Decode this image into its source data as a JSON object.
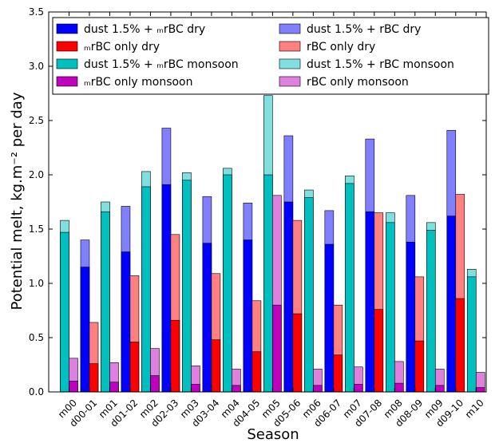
{
  "chart_data": {
    "type": "bar",
    "title": "",
    "xlabel": "Season",
    "ylabel": "Potential melt, kg.m⁻² per day",
    "ylim": [
      0,
      3.5
    ],
    "yticks": [
      "0.0",
      "0.5",
      "1.0",
      "1.5",
      "2.0",
      "2.5",
      "3.0",
      "3.5"
    ],
    "grid": false,
    "legend_placement": "top",
    "categories": [
      "m00",
      "d00-01",
      "m01",
      "d01-02",
      "m02",
      "d02-03",
      "m03",
      "d03-04",
      "m04",
      "d04-05",
      "m05",
      "d05-06",
      "m06",
      "d06-07",
      "m07",
      "d07-08",
      "m08",
      "d08-09",
      "m09",
      "d09-10",
      "m10"
    ],
    "season_kind": [
      "monsoon",
      "dry",
      "monsoon",
      "dry",
      "monsoon",
      "dry",
      "monsoon",
      "dry",
      "monsoon",
      "dry",
      "monsoon",
      "dry",
      "monsoon",
      "dry",
      "monsoon",
      "dry",
      "monsoon",
      "dry",
      "monsoon",
      "dry",
      "monsoon"
    ],
    "legend": [
      {
        "label": "dust 1.5% + ₘrBC dry",
        "color": "#0000ff"
      },
      {
        "label": "ₘrBC only dry",
        "color": "#ff0000"
      },
      {
        "label": "dust 1.5% + ₘrBC monsoon",
        "color": "#00bfbf"
      },
      {
        "label": "ₘrBC only monsoon",
        "color": "#bf00bf"
      },
      {
        "label": "dust 1.5% + rBC dry",
        "color": "#8080ff"
      },
      {
        "label": "rBC only dry",
        "color": "#ff8080"
      },
      {
        "label": "dust 1.5% + rBC  monsoon",
        "color": "#80dfdf"
      },
      {
        "label": "rBC only monsoon",
        "color": "#df80df"
      }
    ],
    "series": [
      {
        "name": "dust 1.5% + ₘrBC dry",
        "values": [
          null,
          1.15,
          null,
          1.29,
          null,
          1.91,
          null,
          1.37,
          null,
          1.4,
          null,
          1.75,
          null,
          1.36,
          null,
          1.66,
          null,
          1.38,
          null,
          1.62,
          null
        ]
      },
      {
        "name": "ₘrBC only dry",
        "values": [
          null,
          0.26,
          null,
          0.46,
          null,
          0.66,
          null,
          0.48,
          null,
          0.37,
          null,
          0.72,
          null,
          0.34,
          null,
          0.76,
          null,
          0.47,
          null,
          0.86,
          null
        ]
      },
      {
        "name": "dust 1.5% + ₘrBC monsoon",
        "values": [
          1.47,
          null,
          1.66,
          null,
          1.89,
          null,
          1.95,
          null,
          2.0,
          null,
          2.0,
          null,
          1.79,
          null,
          1.92,
          null,
          1.56,
          null,
          1.49,
          null,
          1.06
        ]
      },
      {
        "name": "ₘrBC only monsoon",
        "values": [
          0.1,
          null,
          0.09,
          null,
          0.15,
          null,
          0.07,
          null,
          0.06,
          null,
          0.8,
          null,
          0.06,
          null,
          0.07,
          null,
          0.08,
          null,
          0.06,
          null,
          0.04
        ]
      },
      {
        "name": "dust 1.5% + rBC dry",
        "values": [
          null,
          1.4,
          null,
          1.71,
          null,
          2.43,
          null,
          1.8,
          null,
          1.74,
          null,
          2.36,
          null,
          1.67,
          null,
          2.33,
          null,
          1.81,
          null,
          2.41,
          null
        ]
      },
      {
        "name": "rBC only dry",
        "values": [
          null,
          0.64,
          null,
          1.07,
          null,
          1.45,
          null,
          1.09,
          null,
          0.84,
          null,
          1.58,
          null,
          0.8,
          null,
          1.65,
          null,
          1.06,
          null,
          1.82,
          null
        ]
      },
      {
        "name": "dust 1.5% + rBC  monsoon",
        "values": [
          1.58,
          null,
          1.75,
          null,
          2.03,
          null,
          2.02,
          null,
          2.06,
          null,
          2.73,
          null,
          1.86,
          null,
          1.99,
          null,
          1.65,
          null,
          1.56,
          null,
          1.13
        ]
      },
      {
        "name": "rBC only monsoon",
        "values": [
          0.31,
          null,
          0.27,
          null,
          0.4,
          null,
          0.24,
          null,
          0.21,
          null,
          1.81,
          null,
          0.21,
          null,
          0.23,
          null,
          0.28,
          null,
          0.21,
          null,
          0.18
        ]
      }
    ]
  }
}
